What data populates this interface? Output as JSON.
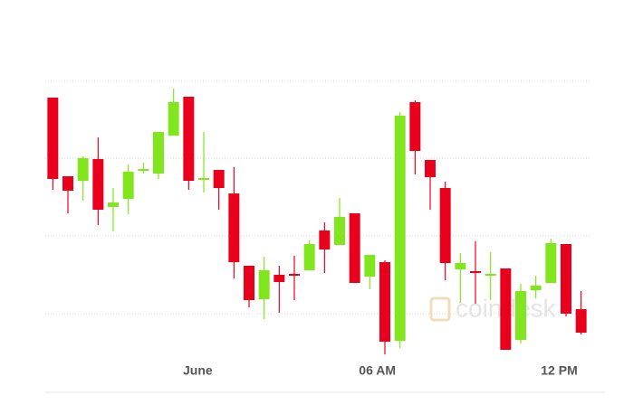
{
  "chart_data": {
    "type": "candlestick",
    "x": [
      0,
      1,
      2,
      3,
      4,
      5,
      6,
      7,
      8,
      9,
      10,
      11,
      12,
      13,
      14,
      15,
      16,
      17,
      18,
      19,
      20,
      21,
      22,
      23,
      24,
      25,
      26,
      27,
      28,
      29,
      30,
      31,
      32,
      33,
      34,
      35
    ],
    "open": [
      325,
      238,
      233,
      257,
      204,
      213,
      244,
      241,
      283,
      326,
      234,
      245,
      219,
      139,
      102,
      129,
      130,
      134,
      178,
      162,
      197,
      127,
      143,
      56,
      320,
      256,
      225,
      135,
      133,
      128,
      136,
      57,
      112,
      120,
      163,
      91
    ],
    "high": [
      325,
      238,
      260,
      281,
      225,
      251,
      253,
      287,
      335,
      326,
      287,
      245,
      248,
      139,
      149,
      139,
      150,
      167,
      187,
      214,
      197,
      151,
      145,
      309,
      322,
      256,
      232,
      153,
      166,
      154,
      136,
      119,
      128,
      169,
      163,
      111
    ],
    "low": [
      223,
      197,
      211,
      184,
      177,
      196,
      241,
      235,
      283,
      223,
      220,
      201,
      125,
      93,
      80,
      87,
      101,
      134,
      131,
      162,
      120,
      113,
      41,
      48,
      240,
      201,
      123,
      98,
      97,
      101,
      46,
      53,
      103,
      120,
      83,
      63
    ],
    "close": [
      235,
      222,
      258,
      201,
      209,
      243,
      246,
      287,
      320,
      233,
      236,
      225,
      143,
      101,
      134,
      121,
      128,
      163,
      157,
      193,
      120,
      151,
      55,
      305,
      266,
      237,
      142,
      142,
      131,
      130,
      46,
      111,
      117,
      164,
      86,
      65
    ],
    "up_color": "#82e61e",
    "down_color": "#e8001c",
    "xlim": [
      -0.5,
      35.5
    ],
    "ylim": [
      0,
      343
    ],
    "xticks": [
      {
        "value": 9.6,
        "label": "June"
      },
      {
        "value": 21.5,
        "label": "06 AM"
      },
      {
        "value": 33.55,
        "label": "12 PM"
      }
    ],
    "watermark": "coindesk"
  }
}
